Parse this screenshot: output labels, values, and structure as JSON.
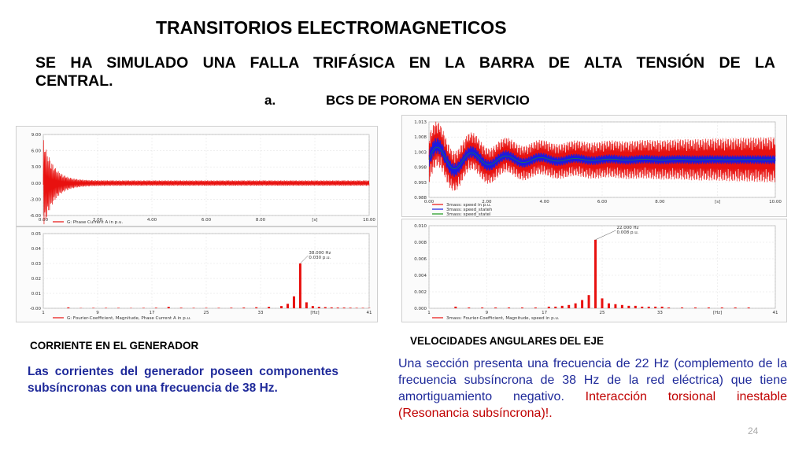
{
  "slide": {
    "title": "TRANSITORIOS ELECTROMAGNETICOS",
    "subtitle_line1": "SE HA SIMULADO UNA FALLA TRIFÁSICA EN LA BARRA DE ALTA TENSIÓN DE LA",
    "subtitle_line2": "CENTRAL.",
    "section_letter": "a.",
    "section_title": "BCS DE POROMA EN SERVICIO",
    "page_number": "24"
  },
  "left": {
    "caption": "CORRIENTE EN EL GENERADOR",
    "text": "Las corrientes del generador poseen componentes subsíncronas con una frecuencia de 38 Hz."
  },
  "right": {
    "caption": "VELOCIDADES ANGULARES DEL EJE",
    "text_part1": "Una sección presenta una frecuencia de 22 Hz (complemento de la frecuencia subsíncrona de 38 Hz de la red eléctrica) que tiene amortiguamiento negativo. ",
    "text_part2": "Interacción torsional inestable (Resonancia subsíncrona)!."
  },
  "colors": {
    "trace_red": "#e8110f",
    "trace_blue": "#1a1ae0",
    "text_blue": "#1f2a9a"
  },
  "chart_data": [
    {
      "type": "line",
      "x_ticks": [
        "0.00",
        "2.00",
        "4.00",
        "6.00",
        "8.00",
        "[s]",
        "10.00"
      ],
      "y_ticks": [
        "9.00",
        "6.00",
        "3.00",
        "0.00",
        "-3.00",
        "-6.00"
      ],
      "ylim": [
        -6,
        9
      ],
      "xlim": [
        0,
        10
      ],
      "series": [
        {
          "name": "G: Phase Current A in p.u."
        }
      ],
      "description_values": {
        "steady_amplitude": 0.5,
        "initial_peak": 8.0
      }
    },
    {
      "type": "bar",
      "x_ticks": [
        "1",
        "9",
        "17",
        "25",
        "33",
        "[Hz]",
        "41"
      ],
      "y_ticks": [
        "0.05",
        "0.04",
        "0.03",
        "0.02",
        "0.01",
        "-0.00"
      ],
      "ylim": [
        0,
        0.05
      ],
      "annotation": [
        "38.000 Hz",
        "0.030 p.u."
      ],
      "series": [
        {
          "name": "G: Fourier-Coefficient, Magnitude, Phase Current A in p.u."
        }
      ],
      "bars": [
        {
          "x": 1,
          "y": 0.0006
        },
        {
          "x": 3,
          "y": 0.0002
        },
        {
          "x": 5,
          "y": 0.0003
        },
        {
          "x": 7,
          "y": 0.0003
        },
        {
          "x": 9,
          "y": 0.0003
        },
        {
          "x": 11,
          "y": 0.0002
        },
        {
          "x": 13,
          "y": 0.0003
        },
        {
          "x": 15,
          "y": 0.0004
        },
        {
          "x": 17,
          "y": 0.001
        },
        {
          "x": 19,
          "y": 0.0004
        },
        {
          "x": 21,
          "y": 0.0003
        },
        {
          "x": 23,
          "y": 0.0003
        },
        {
          "x": 25,
          "y": 0.0003
        },
        {
          "x": 27,
          "y": 0.0004
        },
        {
          "x": 29,
          "y": 0.0005
        },
        {
          "x": 31,
          "y": 0.0007
        },
        {
          "x": 33,
          "y": 0.001
        },
        {
          "x": 35,
          "y": 0.0015
        },
        {
          "x": 36,
          "y": 0.003
        },
        {
          "x": 37,
          "y": 0.008
        },
        {
          "x": 38,
          "y": 0.03
        },
        {
          "x": 39,
          "y": 0.004
        },
        {
          "x": 40,
          "y": 0.0015
        },
        {
          "x": 41,
          "y": 0.001
        },
        {
          "x": 42,
          "y": 0.0008
        },
        {
          "x": 43,
          "y": 0.0006
        },
        {
          "x": 44,
          "y": 0.0005
        },
        {
          "x": 45,
          "y": 0.0005
        },
        {
          "x": 46,
          "y": 0.0004
        },
        {
          "x": 47,
          "y": 0.0003
        },
        {
          "x": 48,
          "y": 0.0003
        },
        {
          "x": 49,
          "y": 0.0002
        }
      ]
    },
    {
      "type": "line",
      "x_ticks": [
        "0.00",
        "2.00",
        "4.00",
        "6.00",
        "8.00",
        "[s]",
        "10.00"
      ],
      "y_ticks": [
        "1.013",
        "1.008",
        "1.003",
        "0.998",
        "0.993",
        "0.988"
      ],
      "ylim": [
        0.988,
        1.013
      ],
      "xlim": [
        0,
        10
      ],
      "series": [
        {
          "name": "3mass: speed in p.u."
        },
        {
          "name": "3mass: speed_stateh"
        },
        {
          "name": "3mass: speed_statel"
        }
      ]
    },
    {
      "type": "bar",
      "x_ticks": [
        "1",
        "9",
        "17",
        "25",
        "33",
        "[Hz]",
        "41"
      ],
      "y_ticks": [
        "0.010",
        "0.008",
        "0.006",
        "0.004",
        "0.002",
        "0.000"
      ],
      "ylim": [
        0,
        0.01
      ],
      "annotation": [
        "22.000 Hz",
        "0.008 p.u."
      ],
      "series": [
        {
          "name": "3mass: Fourier-Coefficient, Magnitude, speed in p.u."
        }
      ],
      "bars": [
        {
          "x": 1,
          "y": 0.0002
        },
        {
          "x": 3,
          "y": 0.0001
        },
        {
          "x": 5,
          "y": 0.0001
        },
        {
          "x": 7,
          "y": 0.0001
        },
        {
          "x": 9,
          "y": 0.0001
        },
        {
          "x": 11,
          "y": 0.0001
        },
        {
          "x": 13,
          "y": 0.0001
        },
        {
          "x": 15,
          "y": 0.0002
        },
        {
          "x": 16,
          "y": 0.0002
        },
        {
          "x": 17,
          "y": 0.0003
        },
        {
          "x": 18,
          "y": 0.0004
        },
        {
          "x": 19,
          "y": 0.0006
        },
        {
          "x": 20,
          "y": 0.001
        },
        {
          "x": 21,
          "y": 0.0016
        },
        {
          "x": 22,
          "y": 0.0083
        },
        {
          "x": 23,
          "y": 0.0012
        },
        {
          "x": 24,
          "y": 0.0006
        },
        {
          "x": 25,
          "y": 0.0005
        },
        {
          "x": 26,
          "y": 0.0004
        },
        {
          "x": 27,
          "y": 0.0003
        },
        {
          "x": 28,
          "y": 0.0003
        },
        {
          "x": 29,
          "y": 0.0002
        },
        {
          "x": 30,
          "y": 0.0002
        },
        {
          "x": 31,
          "y": 0.0002
        },
        {
          "x": 32,
          "y": 0.0002
        },
        {
          "x": 33,
          "y": 0.0001
        },
        {
          "x": 35,
          "y": 0.0001
        },
        {
          "x": 37,
          "y": 0.0001
        },
        {
          "x": 39,
          "y": 0.0001
        },
        {
          "x": 41,
          "y": 0.0001
        },
        {
          "x": 43,
          "y": 0.0001
        },
        {
          "x": 45,
          "y": 0.0001
        }
      ]
    }
  ]
}
